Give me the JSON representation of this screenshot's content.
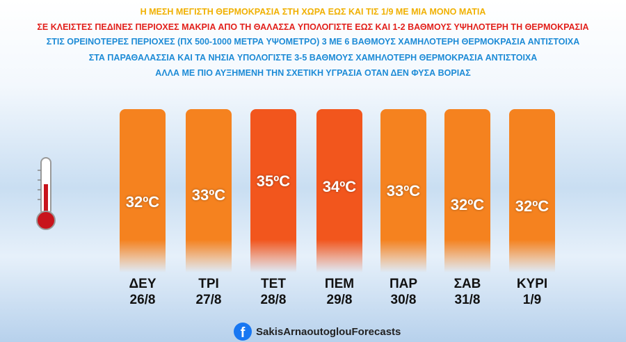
{
  "header": {
    "lines": [
      "Η ΜΕΣΗ ΜΕΓΙΣΤΗ ΘΕΡΜΟΚΡΑΣΙΑ ΣΤΗ ΧΩΡΑ ΕΩΣ ΚΑΙ ΤΙΣ 1/9 ΜΕ ΜΙΑ ΜΟΝΟ ΜΑΤΙΑ",
      "ΣΕ ΚΛΕΙΣΤΕΣ ΠΕΔΙΝΕΣ ΠΕΡΙΟΧΕΣ ΜΑΚΡΙΑ ΑΠΟ ΤΗ ΘΑΛΑΣΣΑ ΥΠΟΛΟΓΙΣΤΕ ΕΩΣ ΚΑΙ 1-2 ΒΑΘΜΟΥΣ ΥΨΗΛΟΤΕΡΗ ΤΗ ΘΕΡΜΟΚΡΑΣΙΑ",
      "ΣΤΙΣ ΟΡΕΙΝΟΤΕΡΕΣ ΠΕΡΙΟΧΕΣ (ΠΧ 500-1000 ΜΕΤΡΑ ΥΨΟΜΕΤΡΟ) 3 ΜΕ 6 ΒΑΘΜΟΥΣ ΧΑΜΗΛΟΤΕΡΗ ΘΕΡΜΟΚΡΑΣΙΑ ΑΝΤΙΣΤΟΙΧΑ",
      "ΣΤΑ ΠΑΡΑΘΑΛΑΣΣΙΑ ΚΑΙ ΤΑ ΝΗΣΙΑ ΥΠΟΛΟΓΙΣΤΕ 3-5 ΒΑΘΜΟΥΣ ΧΑΜΗΛΟΤΕΡΗ ΘΕΡΜΟΚΡΑΣΙΑ ΑΝΤΙΣΤΟΙΧΑ",
      "ΑΛΛΑ ΜΕ ΠΙΟ ΑΥΞΗΜΕΝΗ ΤΗΝ ΣΧΕΤΙΚΗ ΥΓΡΑΣΙΑ ΟΤΑΝ ΔΕΝ ΦΥΣΑ ΒΟΡΙΑΣ"
    ]
  },
  "days": [
    {
      "day": "ΔΕΥ",
      "date": "26/8",
      "temperature": "32ºC",
      "color": "#f5821f"
    },
    {
      "day": "ΤΡΙ",
      "date": "27/8",
      "temperature": "33ºC",
      "color": "#f5821f"
    },
    {
      "day": "ΤΕΤ",
      "date": "28/8",
      "temperature": "35ºC",
      "color": "#f2561d"
    },
    {
      "day": "ΠΕΜ",
      "date": "29/8",
      "temperature": "34ºC",
      "color": "#f2561d"
    },
    {
      "day": "ΠΑΡ",
      "date": "30/8",
      "temperature": "33ºC",
      "color": "#f5821f"
    },
    {
      "day": "ΣΑΒ",
      "date": "31/8",
      "temperature": "32ºC",
      "color": "#f5821f"
    },
    {
      "day": "ΚΥΡΙ",
      "date": "1/9",
      "temperature": "32ºC",
      "color": "#f5821f"
    }
  ],
  "footer": {
    "brand": "SakisArnaoutoglouForecasts"
  }
}
